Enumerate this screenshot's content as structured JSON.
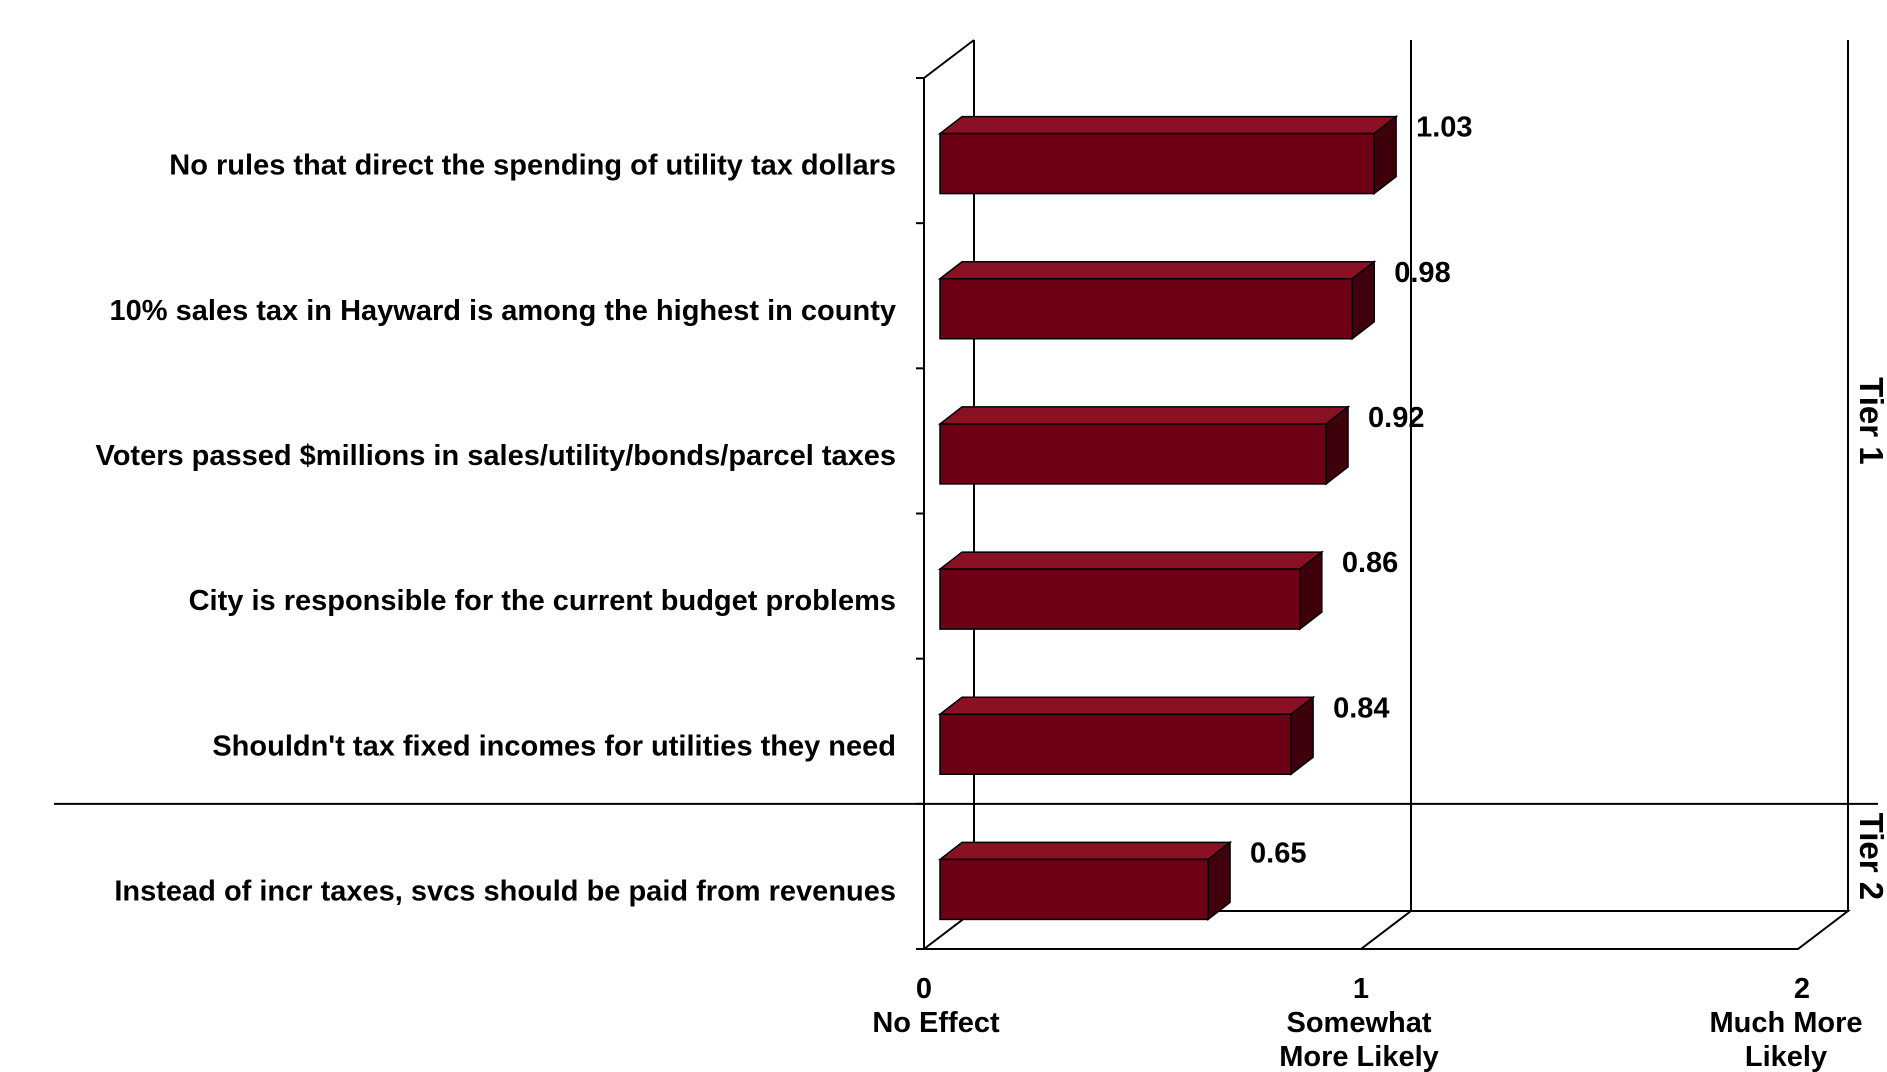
{
  "chart_data": {
    "type": "bar",
    "orientation": "horizontal",
    "style": "3d",
    "categories": [
      "No rules that direct the spending of utility tax dollars",
      "10%  sales tax in Hayward is among the highest in county",
      "Voters passed $millions in sales/utility/bonds/parcel taxes",
      "City is responsible for the current budget problems",
      "Shouldn't tax fixed incomes for utilities they need",
      "Instead of incr taxes, svcs should be paid from revenues"
    ],
    "values": [
      1.03,
      0.98,
      0.92,
      0.86,
      0.84,
      0.65
    ],
    "value_labels": [
      "1.03",
      "0.98",
      "0.92",
      "0.86",
      "0.84",
      "0.65"
    ],
    "xlim": [
      0,
      2
    ],
    "ticks": [
      {
        "value": 0,
        "number": "0",
        "lines": [
          "No Effect"
        ]
      },
      {
        "value": 1,
        "number": "1",
        "lines": [
          "Somewhat",
          "More  Likely"
        ]
      },
      {
        "value": 2,
        "number": "2",
        "lines": [
          "Much More",
          "Likely"
        ]
      }
    ],
    "groups": [
      {
        "label": "Tier 1",
        "count": 5
      },
      {
        "label": "Tier 2",
        "count": 1
      }
    ],
    "bar_color": "#6e0015",
    "bar_top_color": "#8a1024",
    "bar_side_color": "#3e000a",
    "grid": false,
    "legend": "none"
  }
}
